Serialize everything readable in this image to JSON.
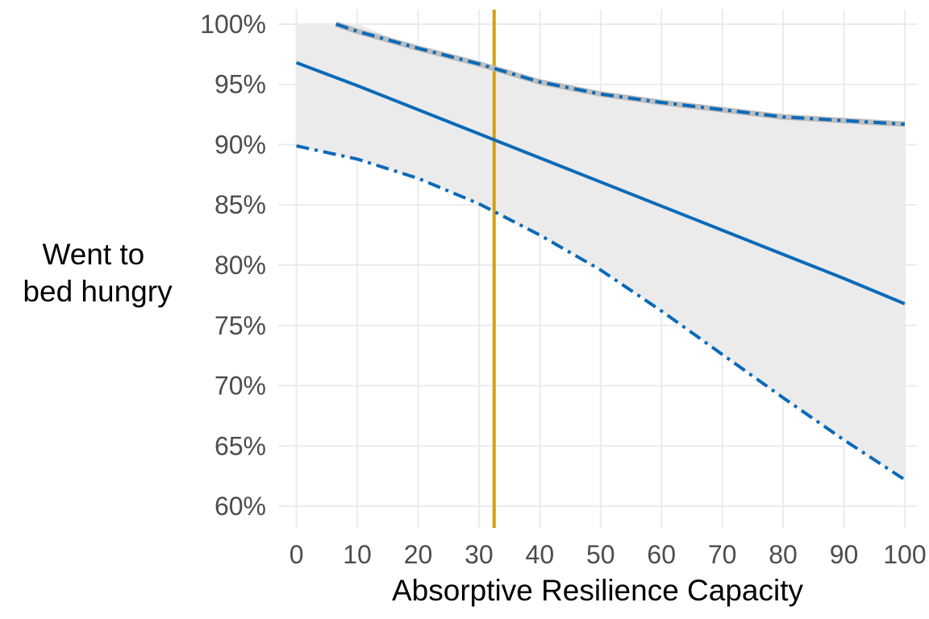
{
  "chart_data": {
    "type": "line",
    "title": "",
    "xlabel": "Absorptive Resilience Capacity",
    "ylabel_lines": [
      "Went to",
      "bed hungry"
    ],
    "xlim": [
      -3,
      102
    ],
    "ylim": [
      58.2,
      101.2
    ],
    "x_ticks": [
      0,
      10,
      20,
      30,
      40,
      50,
      60,
      70,
      80,
      90,
      100
    ],
    "x_tick_labels": [
      "0",
      "10",
      "20",
      "30",
      "40",
      "50",
      "60",
      "70",
      "80",
      "90",
      "100"
    ],
    "y_ticks": [
      60,
      65,
      70,
      75,
      80,
      85,
      90,
      95,
      100
    ],
    "y_tick_labels": [
      "60%",
      "65%",
      "70%",
      "75%",
      "80%",
      "85%",
      "90%",
      "95%",
      "100%"
    ],
    "grid": true,
    "legend": "none",
    "reference_line": {
      "x": 32.5,
      "color": "#d4a017"
    },
    "band": {
      "color": "#ebebeb",
      "x": [
        0,
        10,
        20,
        30,
        40,
        50,
        60,
        70,
        80,
        90,
        100
      ],
      "lower": [
        89.9,
        88.8,
        87.2,
        85.1,
        82.5,
        79.6,
        76.2,
        72.6,
        69.0,
        65.5,
        62.2
      ],
      "upper": [
        100.0,
        100.0,
        98.0,
        96.7,
        95.2,
        94.2,
        93.5,
        92.9,
        92.3,
        91.9,
        91.4
      ]
    },
    "series": [
      {
        "style": "solid",
        "color": "#0a6ab8",
        "x": [
          0,
          10,
          20,
          30,
          40,
          50,
          60,
          70,
          80,
          90,
          100
        ],
        "values": [
          96.8,
          94.9,
          92.9,
          90.9,
          88.9,
          86.9,
          84.9,
          82.9,
          80.9,
          78.9,
          76.8
        ]
      },
      {
        "style": "dash-dot",
        "color": "#0a6ab8",
        "x": [
          6.5,
          10,
          20,
          30,
          40,
          50,
          60,
          70,
          80,
          90,
          100
        ],
        "values": [
          100.0,
          99.4,
          98.0,
          96.7,
          95.2,
          94.2,
          93.5,
          92.9,
          92.3,
          92.0,
          91.7
        ]
      },
      {
        "style": "dash-dot",
        "color": "#0a6ab8",
        "x": [
          0,
          10,
          20,
          30,
          40,
          50,
          60,
          70,
          80,
          90,
          100
        ],
        "values": [
          89.9,
          88.8,
          87.2,
          85.1,
          82.5,
          79.6,
          76.2,
          72.6,
          69.0,
          65.5,
          62.2
        ]
      }
    ]
  }
}
